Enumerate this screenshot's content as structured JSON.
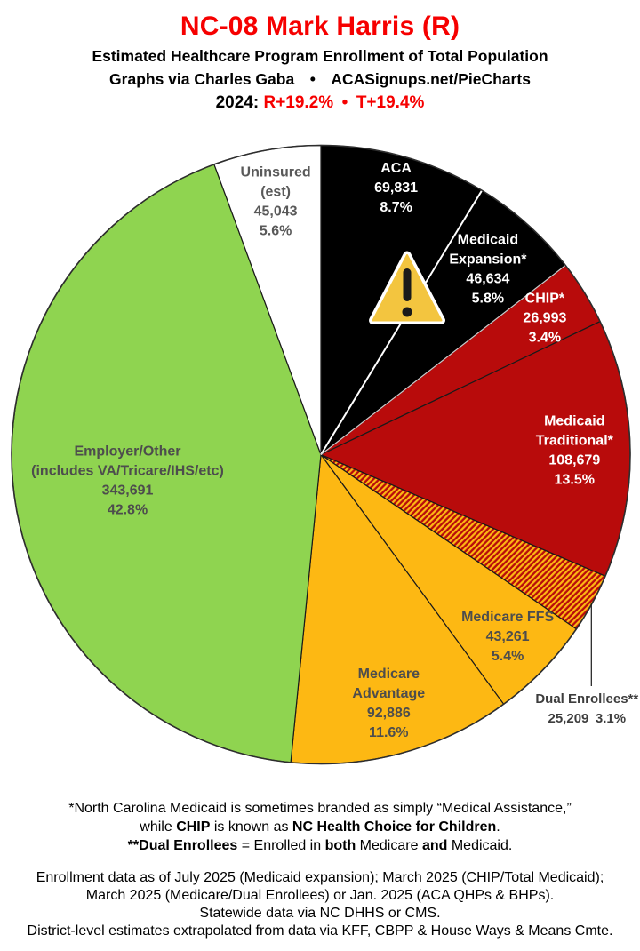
{
  "header": {
    "title": "NC-08 Mark Harris (R)",
    "title_color": "#f60000",
    "accent_red": "#f60000",
    "subtitle1": "Estimated Healthcare Program Enrollment of Total Population",
    "subtitle2": "Graphs via Charles Gaba  •  ACASignups.net/PieCharts",
    "partisan_segments": [
      {
        "text": "2024: ",
        "red": false
      },
      {
        "text": "R+19.2%",
        "red": true
      },
      {
        "text": " • ",
        "red": true
      },
      {
        "text": "T+19.4%",
        "red": true
      }
    ]
  },
  "chart_data": {
    "type": "pie",
    "title": "Estimated Healthcare Program Enrollment of Total Population",
    "order": "clockwise-from-top",
    "units": "people",
    "slices": [
      {
        "id": "aca",
        "name": "ACA",
        "lines": [
          "ACA",
          "69,831",
          "8.7%"
        ],
        "value": 69831,
        "pct": 8.7,
        "color": "#000000",
        "text_color": "#ffffff",
        "label_r": 0.9
      },
      {
        "id": "medicaid-expansion",
        "name": "Medicaid Expansion*",
        "lines": [
          "Medicaid",
          "Expansion*",
          "46,634",
          "5.8%"
        ],
        "value": 46634,
        "pct": 5.8,
        "color": "#000000",
        "text_color": "#ffffff",
        "label_r": 0.81
      },
      {
        "id": "chip",
        "name": "CHIP*",
        "lines": [
          "CHIP*",
          "26,993",
          "3.4%"
        ],
        "value": 26993,
        "pct": 3.4,
        "color": "#b80b0b",
        "text_color": "#ffffff",
        "label_r": 0.85
      },
      {
        "id": "medicaid-traditional",
        "name": "Medicaid Traditional*",
        "lines": [
          "Medicaid",
          "Traditional*",
          "108,679",
          "13.5%"
        ],
        "value": 108679,
        "pct": 13.5,
        "color": "#b80b0b",
        "text_color": "#ffffff",
        "label_r": 0.82
      },
      {
        "id": "dual-enrollees",
        "name": "Dual Enrollees**",
        "lines": [
          "Dual Enrollees**",
          "25,209 3.1%"
        ],
        "value": 25209,
        "pct": 3.1,
        "color": "hatch",
        "text_color": "#3d3d3d",
        "label_outside": true
      },
      {
        "id": "medicare-ffs",
        "name": "Medicare FFS",
        "lines": [
          "Medicare FFS",
          "43,261",
          "5.4%"
        ],
        "value": 43261,
        "pct": 5.4,
        "color": "#fdb813",
        "text_color": "#4d4d4d",
        "label_r": 0.84
      },
      {
        "id": "medicare-advantage",
        "name": "Medicare Advantage",
        "lines": [
          "Medicare",
          "Advantage",
          "92,886",
          "11.6%"
        ],
        "value": 92886,
        "pct": 11.6,
        "color": "#fdb813",
        "text_color": "#4d4d4d",
        "label_r": 0.83
      },
      {
        "id": "employer-other",
        "name": "Employer/Other (includes VA/Tricare/IHS/etc)",
        "lines": [
          "Employer/Other",
          "(includes VA/Tricare/IHS/etc)",
          "343,691",
          "42.8%"
        ],
        "value": 343691,
        "pct": 42.8,
        "color": "#8fd450",
        "text_color": "#4d4d4d",
        "label_r": 0.63
      },
      {
        "id": "uninsured",
        "name": "Uninsured (est)",
        "lines": [
          "Uninsured",
          "(est)",
          "45,043",
          "5.6%"
        ],
        "value": 45043,
        "pct": 5.6,
        "color": "#ffffff",
        "text_color": "#595959",
        "label_r": 0.835
      }
    ],
    "hatch_colors": [
      "#b80b0b",
      "#fdb813"
    ],
    "divider_white_after": "aca",
    "divider_light_after": "medicaid-expansion",
    "rim_color": "#2e2e2e",
    "slice_stroke": "#1a1a1a",
    "warning_icon": {
      "fill": "#f3c53f",
      "border": "#ffffff",
      "mark": "#1a1a1a"
    }
  },
  "footnotes": [
    [
      {
        "t": "*North Carolina Medicaid is sometimes branded as simply “Medical Assistance,”"
      }
    ],
    [
      {
        "t": "while "
      },
      {
        "t": "CHIP",
        "b": true
      },
      {
        "t": " is known as "
      },
      {
        "t": "NC Health Choice for Children",
        "b": true
      },
      {
        "t": "."
      }
    ],
    [
      {
        "t": "**Dual Enrollees",
        "b": true
      },
      {
        "t": " = Enrolled in "
      },
      {
        "t": "both",
        "b": true
      },
      {
        "t": " Medicare "
      },
      {
        "t": "and",
        "b": true
      },
      {
        "t": " Medicaid."
      }
    ]
  ],
  "source_lines": [
    "Enrollment data as of July 2025 (Medicaid expansion); March 2025 (CHIP/Total Medicaid);",
    "March 2025 (Medicare/Dual Enrollees) or Jan. 2025 (ACA QHPs & BHPs).",
    "Statewide data via NC DHHS or CMS.",
    "District-level estimates extrapolated from data via KFF, CBPP & House Ways & Means Cmte."
  ]
}
